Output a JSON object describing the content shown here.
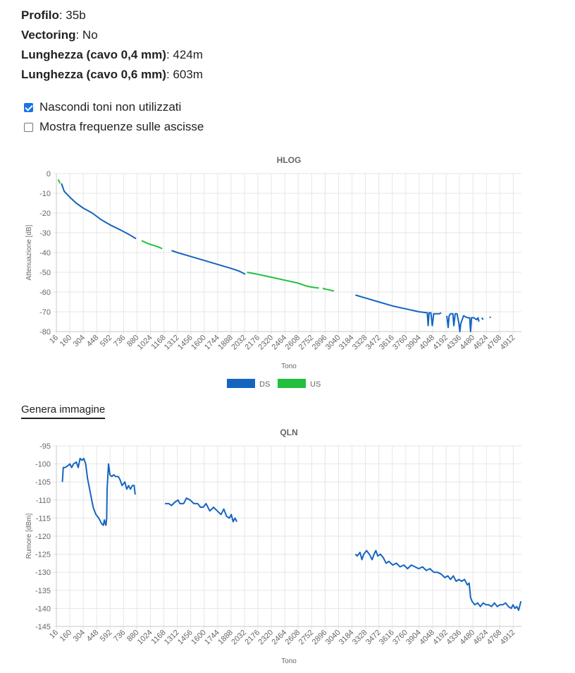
{
  "info": [
    {
      "label": "Profilo",
      "value": "35b"
    },
    {
      "label": "Vectoring",
      "value": "No"
    },
    {
      "label": "Lunghezza (cavo 0,4 mm)",
      "value": "424m"
    },
    {
      "label": "Lunghezza (cavo 0,6 mm)",
      "value": "603m"
    }
  ],
  "options": {
    "hide_unused": {
      "label": "Nascondi toni non utilizzati",
      "checked": true
    },
    "show_freq": {
      "label": "Mostra frequenze sulle ascisse",
      "checked": false
    }
  },
  "generate_image_label": "Genera immagine",
  "colors": {
    "ds": "#1565c0",
    "us": "#22c03c",
    "grid": "#e6e6e6",
    "axis": "#c8c8c8"
  },
  "chart_data": [
    {
      "type": "line",
      "title": "HLOG",
      "xlabel": "Tono",
      "ylabel": "Attenuazione [dB]",
      "xlim": [
        16,
        5000
      ],
      "ylim": [
        -80,
        0
      ],
      "x_ticks": [
        16,
        160,
        304,
        448,
        592,
        736,
        880,
        1024,
        1168,
        1312,
        1456,
        1600,
        1744,
        1888,
        2032,
        2176,
        2320,
        2464,
        2608,
        2752,
        2896,
        3040,
        3184,
        3328,
        3472,
        3616,
        3760,
        3904,
        4048,
        4192,
        4336,
        4480,
        4624,
        4768,
        4912
      ],
      "y_ticks": [
        0,
        -10,
        -20,
        -30,
        -40,
        -50,
        -60,
        -70,
        -80
      ],
      "grid": true,
      "legend": "bottom",
      "legend_entries": [
        {
          "label": "DS",
          "color": "#1565c0"
        },
        {
          "label": "US",
          "color": "#22c03c"
        }
      ],
      "series": [
        {
          "color": "#1565c0",
          "segments": [
            [
              [
                70,
                -5
              ],
              [
                100,
                -9
              ],
              [
                160,
                -12
              ],
              [
                230,
                -15
              ],
              [
                304,
                -17.5
              ],
              [
                400,
                -20
              ],
              [
                500,
                -23.5
              ],
              [
                592,
                -26
              ],
              [
                700,
                -28.5
              ],
              [
                800,
                -31
              ],
              [
                870,
                -33
              ]
            ],
            [
              [
                1250,
                -39
              ],
              [
                1312,
                -40
              ],
              [
                1456,
                -42
              ],
              [
                1600,
                -44
              ],
              [
                1744,
                -46
              ],
              [
                1888,
                -48
              ],
              [
                1980,
                -49.5
              ],
              [
                2040,
                -51
              ]
            ],
            [
              [
                3220,
                -61.5
              ],
              [
                3328,
                -63
              ],
              [
                3472,
                -65
              ],
              [
                3616,
                -67
              ],
              [
                3760,
                -68.5
              ],
              [
                3904,
                -70
              ],
              [
                3990,
                -70.5
              ],
              [
                4000,
                -77
              ],
              [
                4010,
                -70.5
              ],
              [
                4030,
                -70.5
              ],
              [
                4045,
                -77
              ],
              [
                4060,
                -71
              ],
              [
                4120,
                -71
              ],
              [
                4140,
                -70.5
              ]
            ],
            [
              [
                4200,
                -72
              ],
              [
                4215,
                -78
              ],
              [
                4225,
                -72
              ],
              [
                4240,
                -71
              ],
              [
                4265,
                -71
              ],
              [
                4275,
                -77
              ],
              [
                4290,
                -71
              ],
              [
                4310,
                -71
              ],
              [
                4330,
                -76
              ],
              [
                4340,
                -80
              ],
              [
                4350,
                -76
              ],
              [
                4380,
                -72
              ],
              [
                4420,
                -73
              ],
              [
                4445,
                -73
              ],
              [
                4455,
                -80
              ],
              [
                4465,
                -73
              ],
              [
                4490,
                -73
              ],
              [
                4520,
                -74
              ],
              [
                4535,
                -73
              ],
              [
                4545,
                -75
              ]
            ],
            [
              [
                4575,
                -73
              ],
              [
                4590,
                -74
              ]
            ],
            [
              [
                4660,
                -72.5
              ],
              [
                4670,
                -73
              ]
            ]
          ]
        },
        {
          "color": "#22c03c",
          "segments": [
            [
              [
                36,
                -3
              ],
              [
                55,
                -5
              ]
            ],
            [
              [
                930,
                -34
              ],
              [
                1000,
                -35.5
              ],
              [
                1100,
                -37
              ],
              [
                1150,
                -38
              ]
            ],
            [
              [
                2060,
                -50
              ],
              [
                2176,
                -51
              ],
              [
                2320,
                -52.5
              ],
              [
                2464,
                -54
              ],
              [
                2608,
                -55.5
              ],
              [
                2700,
                -57
              ],
              [
                2752,
                -57.5
              ],
              [
                2830,
                -58
              ]
            ],
            [
              [
                2870,
                -58
              ],
              [
                2896,
                -58.5
              ],
              [
                2950,
                -59
              ],
              [
                2990,
                -59.5
              ]
            ]
          ]
        }
      ]
    },
    {
      "type": "line",
      "title": "QLN",
      "xlabel": "Tono",
      "ylabel": "Rumore [dBm]",
      "xlim": [
        16,
        5000
      ],
      "ylim": [
        -145,
        -95
      ],
      "x_ticks": [
        16,
        160,
        304,
        448,
        592,
        736,
        880,
        1024,
        1168,
        1312,
        1456,
        1600,
        1744,
        1888,
        2032,
        2176,
        2320,
        2464,
        2608,
        2752,
        2896,
        3040,
        3184,
        3328,
        3472,
        3616,
        3760,
        3904,
        4048,
        4192,
        4336,
        4480,
        4624,
        4768,
        4912
      ],
      "y_ticks": [
        -95,
        -100,
        -105,
        -110,
        -115,
        -120,
        -125,
        -130,
        -135,
        -140,
        -145
      ],
      "grid": true,
      "series": [
        {
          "color": "#1565c0",
          "segments": [
            [
              [
                80,
                -105
              ],
              [
                90,
                -101
              ],
              [
                110,
                -101
              ],
              [
                140,
                -100.5
              ],
              [
                160,
                -100
              ],
              [
                180,
                -101
              ],
              [
                200,
                -100
              ],
              [
                230,
                -99.5
              ],
              [
                250,
                -101
              ],
              [
                270,
                -98.5
              ],
              [
                290,
                -99
              ],
              [
                310,
                -98.5
              ],
              [
                330,
                -100
              ],
              [
                350,
                -104
              ],
              [
                380,
                -108
              ],
              [
                410,
                -112
              ],
              [
                440,
                -114
              ],
              [
                470,
                -115
              ],
              [
                500,
                -116.5
              ],
              [
                520,
                -117
              ],
              [
                530,
                -115.5
              ],
              [
                540,
                -116.5
              ],
              [
                548,
                -117
              ],
              [
                555,
                -115
              ],
              [
                560,
                -107
              ],
              [
                575,
                -100
              ],
              [
                590,
                -103
              ],
              [
                610,
                -103.5
              ],
              [
                630,
                -103
              ],
              [
                650,
                -103.5
              ],
              [
                680,
                -103.5
              ],
              [
                700,
                -104.5
              ],
              [
                720,
                -106
              ],
              [
                750,
                -105
              ],
              [
                770,
                -107
              ],
              [
                790,
                -106
              ],
              [
                810,
                -107
              ],
              [
                830,
                -106
              ],
              [
                850,
                -106
              ],
              [
                860,
                -108.5
              ]
            ],
            [
              [
                1180,
                -111
              ],
              [
                1220,
                -111
              ],
              [
                1250,
                -111.5
              ],
              [
                1290,
                -110.5
              ],
              [
                1320,
                -110
              ],
              [
                1340,
                -111
              ],
              [
                1380,
                -111
              ],
              [
                1410,
                -109.5
              ],
              [
                1450,
                -110
              ],
              [
                1490,
                -111
              ],
              [
                1530,
                -111
              ],
              [
                1560,
                -112
              ],
              [
                1590,
                -112
              ],
              [
                1620,
                -111
              ],
              [
                1660,
                -113
              ],
              [
                1700,
                -112
              ],
              [
                1740,
                -113
              ],
              [
                1780,
                -114
              ],
              [
                1810,
                -112.5
              ],
              [
                1840,
                -114.5
              ],
              [
                1870,
                -115
              ],
              [
                1890,
                -114
              ],
              [
                1910,
                -116
              ],
              [
                1930,
                -115
              ],
              [
                1950,
                -116
              ]
            ],
            [
              [
                3220,
                -125
              ],
              [
                3240,
                -125.5
              ],
              [
                3270,
                -124.5
              ],
              [
                3290,
                -126.5
              ],
              [
                3310,
                -125
              ],
              [
                3340,
                -124
              ],
              [
                3370,
                -125
              ],
              [
                3400,
                -126.5
              ],
              [
                3420,
                -125
              ],
              [
                3440,
                -124
              ],
              [
                3460,
                -125.5
              ],
              [
                3490,
                -125
              ],
              [
                3520,
                -126
              ],
              [
                3550,
                -127.5
              ],
              [
                3580,
                -127
              ],
              [
                3620,
                -128
              ],
              [
                3660,
                -127.5
              ],
              [
                3700,
                -128.5
              ],
              [
                3740,
                -128
              ],
              [
                3780,
                -129
              ],
              [
                3820,
                -128
              ],
              [
                3860,
                -128.5
              ],
              [
                3900,
                -129
              ],
              [
                3940,
                -128.5
              ],
              [
                3980,
                -129.5
              ],
              [
                4020,
                -129
              ],
              [
                4060,
                -130
              ],
              [
                4100,
                -130
              ],
              [
                4140,
                -130.5
              ],
              [
                4180,
                -131.5
              ],
              [
                4210,
                -131
              ],
              [
                4240,
                -132
              ],
              [
                4270,
                -131
              ],
              [
                4300,
                -132.5
              ],
              [
                4330,
                -132
              ],
              [
                4360,
                -132.5
              ],
              [
                4390,
                -132
              ],
              [
                4420,
                -133.5
              ],
              [
                4440,
                -133
              ],
              [
                4455,
                -137
              ],
              [
                4470,
                -138
              ],
              [
                4500,
                -139
              ],
              [
                4530,
                -138.5
              ],
              [
                4560,
                -139.5
              ],
              [
                4590,
                -138.5
              ],
              [
                4620,
                -139
              ],
              [
                4650,
                -139
              ],
              [
                4680,
                -139.5
              ],
              [
                4710,
                -138.5
              ],
              [
                4740,
                -139.5
              ],
              [
                4770,
                -139
              ],
              [
                4800,
                -139
              ],
              [
                4830,
                -138.5
              ],
              [
                4860,
                -139.5
              ],
              [
                4890,
                -140
              ],
              [
                4910,
                -139
              ],
              [
                4930,
                -140
              ],
              [
                4950,
                -139.5
              ],
              [
                4970,
                -140.5
              ],
              [
                4985,
                -139
              ],
              [
                4995,
                -138
              ]
            ]
          ]
        }
      ]
    }
  ]
}
